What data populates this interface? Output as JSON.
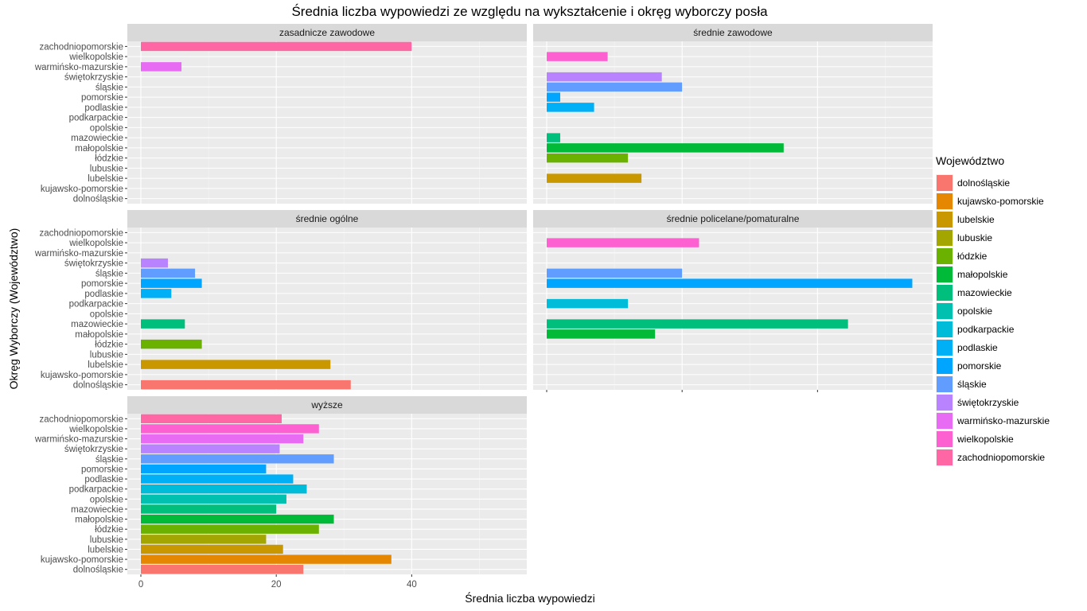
{
  "chart_data": {
    "type": "bar",
    "orientation": "horizontal",
    "title": "Średnia liczba wypowiedzi ze względu na wykształcenie i okręg wyborczy posła",
    "xlabel": "Średnia liczba wypowiedzi",
    "ylabel": "Okręg Wyborczy (Województwo)",
    "xlim": [
      -2,
      57
    ],
    "xticks": [
      0,
      20,
      40
    ],
    "grid": true,
    "legend_position": "right",
    "legend_title": "Województwo",
    "categories": [
      "dolnośląskie",
      "kujawsko-pomorskie",
      "lubelskie",
      "lubuskie",
      "łódzkie",
      "małopolskie",
      "mazowieckie",
      "opolskie",
      "podkarpackie",
      "podlaskie",
      "pomorskie",
      "śląskie",
      "świętokrzyskie",
      "warmińsko-mazurskie",
      "wielkopolskie",
      "zachodniopomorskie"
    ],
    "colors": [
      "#F8766D",
      "#E58700",
      "#C99800",
      "#A3A500",
      "#6BB100",
      "#00BA38",
      "#00BF7D",
      "#00C0AF",
      "#00BCD8",
      "#00B0F6",
      "#00A5FF",
      "#619CFF",
      "#B983FF",
      "#E76BF3",
      "#FD61D1",
      "#FF67A4"
    ],
    "facets": [
      {
        "label": "zasadnicze zawodowe",
        "values": [
          null,
          null,
          null,
          null,
          null,
          null,
          null,
          null,
          null,
          null,
          null,
          null,
          null,
          6,
          null,
          40
        ]
      },
      {
        "label": "średnie zawodowe",
        "values": [
          null,
          null,
          14,
          null,
          12,
          35,
          2,
          null,
          null,
          7,
          2,
          20,
          17,
          null,
          9,
          null
        ]
      },
      {
        "label": "średnie ogólne",
        "values": [
          31,
          null,
          28,
          null,
          9,
          null,
          6.5,
          null,
          null,
          4.5,
          9,
          8,
          4,
          null,
          null,
          null
        ]
      },
      {
        "label": "średnie policelane/pomaturalne",
        "values": [
          null,
          null,
          null,
          null,
          null,
          16,
          44.5,
          null,
          12,
          null,
          54,
          20,
          null,
          null,
          22.5,
          null
        ]
      },
      {
        "label": "wyższe",
        "values": [
          24,
          37,
          21,
          18.5,
          26.3,
          28.5,
          20,
          21.5,
          24.5,
          22.5,
          18.5,
          28.5,
          20.5,
          24,
          26.3,
          20.8
        ]
      }
    ]
  }
}
